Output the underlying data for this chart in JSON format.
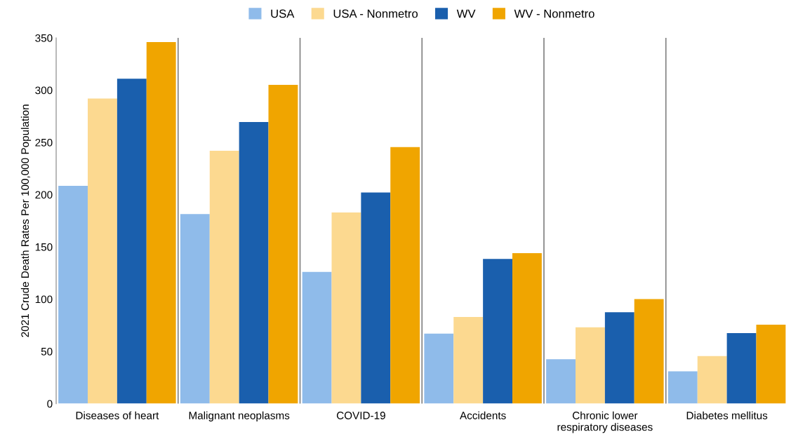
{
  "chart_data": {
    "type": "bar",
    "ylabel": "2021 Crude Death Rates Per 100,000 Population",
    "categories": [
      "Diseases of heart",
      "Malignant neoplasms",
      "COVID-19",
      "Accidents",
      "Chronic lower\nrespiratory diseases",
      "Diabetes mellitus"
    ],
    "series": [
      {
        "name": "USA",
        "color": "#8fbbea",
        "values": [
          208.5,
          181.5,
          126,
          67,
          42.5,
          31
        ]
      },
      {
        "name": "USA - Nonmetro",
        "color": "#fcd990",
        "values": [
          292,
          242,
          183,
          83,
          73,
          45.5
        ]
      },
      {
        "name": "WV",
        "color": "#1a5fad",
        "values": [
          311,
          269.5,
          202,
          138.5,
          87.5,
          67.5
        ]
      },
      {
        "name": "WV - Nonmetro",
        "color": "#f0a500",
        "values": [
          346,
          305,
          245.5,
          144,
          100,
          75.5
        ]
      }
    ],
    "ylim": [
      0,
      350
    ],
    "yticks": [
      0,
      50,
      100,
      150,
      200,
      250,
      300,
      350
    ],
    "grid": "x",
    "legend": "top"
  }
}
